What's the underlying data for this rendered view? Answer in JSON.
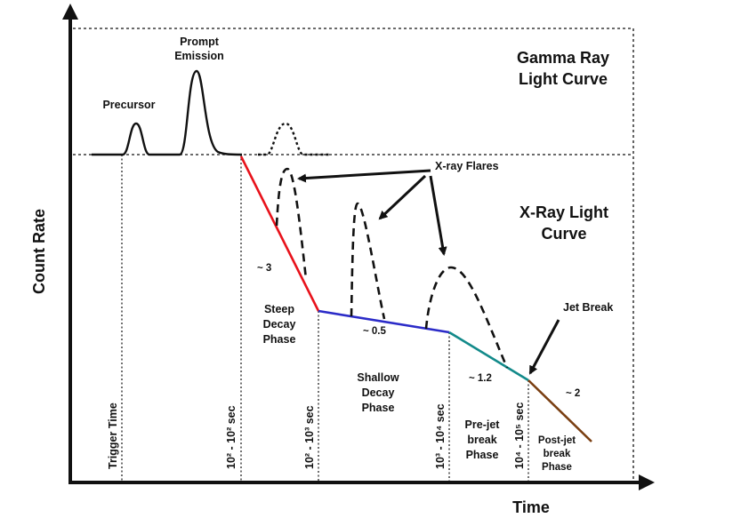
{
  "axes": {
    "y_label": "Count Rate",
    "x_label": "Time"
  },
  "panels": {
    "gamma": {
      "title_line1": "Gamma Ray",
      "title_line2": "Light Curve"
    },
    "xray": {
      "title_line1": "X-Ray Light",
      "title_line2": "Curve"
    }
  },
  "gamma_labels": {
    "precursor": "Precursor",
    "prompt_line1": "Prompt",
    "prompt_line2": "Emission"
  },
  "annotations": {
    "xray_flares": "X-ray Flares",
    "jet_break": "Jet Break"
  },
  "slopes": {
    "steep": "~ 3",
    "shallow": "~ 0.5",
    "prejet": "~ 1.2",
    "postjet": "~ 2"
  },
  "phases": {
    "steep": [
      "Steep",
      "Decay",
      "Phase"
    ],
    "shallow": [
      "Shallow",
      "Decay",
      "Phase"
    ],
    "prejet": [
      "Pre-jet",
      "break",
      "Phase"
    ],
    "postjet": [
      "Post-jet",
      "break",
      "Phase"
    ]
  },
  "time_markers": {
    "trigger": "Trigger Time",
    "t1": "10² - 10² sec",
    "t2": "10² - 10³ sec",
    "t3": "10³ - 10⁴ sec",
    "t4": "10⁴ - 10⁵ sec"
  },
  "colors": {
    "steep_segment": "#e8121b",
    "shallow_segment": "#2b2bc8",
    "prejet_segment": "#138a8a",
    "postjet_segment": "#7a3f12",
    "ink": "#111111"
  }
}
